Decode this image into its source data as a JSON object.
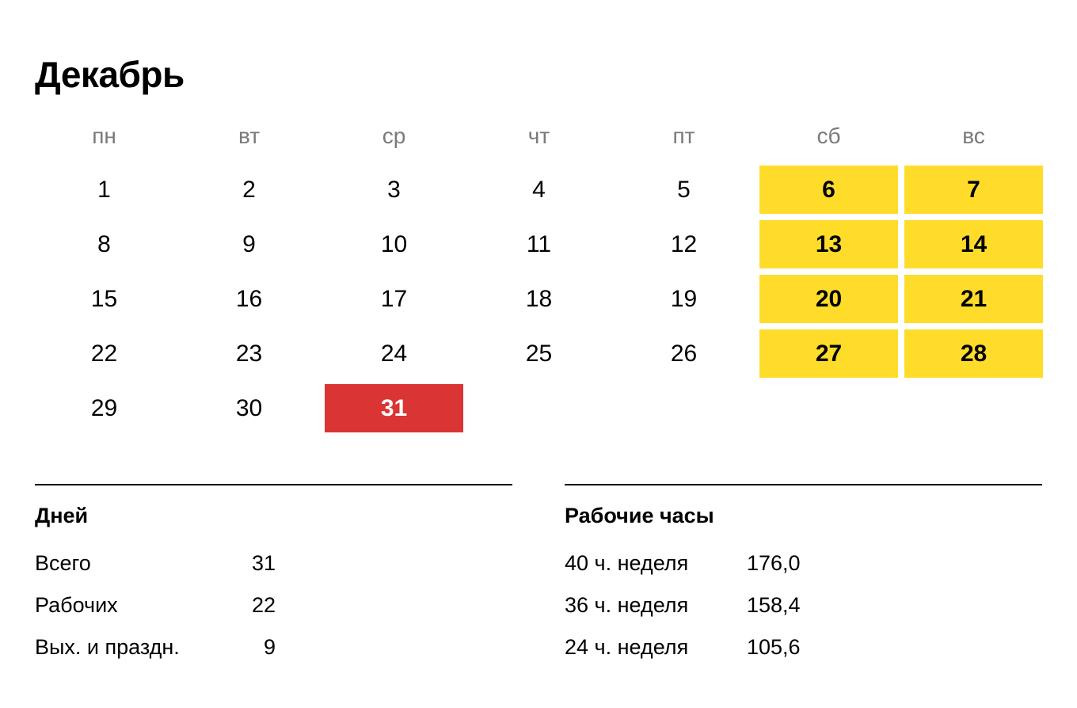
{
  "month": "Декабрь",
  "weekdays": [
    "пн",
    "вт",
    "ср",
    "чт",
    "пт",
    "сб",
    "вс"
  ],
  "weeks": [
    [
      {
        "d": "1",
        "t": "work"
      },
      {
        "d": "2",
        "t": "work"
      },
      {
        "d": "3",
        "t": "work"
      },
      {
        "d": "4",
        "t": "work"
      },
      {
        "d": "5",
        "t": "work"
      },
      {
        "d": "6",
        "t": "weekend"
      },
      {
        "d": "7",
        "t": "weekend"
      }
    ],
    [
      {
        "d": "8",
        "t": "work"
      },
      {
        "d": "9",
        "t": "work"
      },
      {
        "d": "10",
        "t": "work"
      },
      {
        "d": "11",
        "t": "work"
      },
      {
        "d": "12",
        "t": "work"
      },
      {
        "d": "13",
        "t": "weekend"
      },
      {
        "d": "14",
        "t": "weekend"
      }
    ],
    [
      {
        "d": "15",
        "t": "work"
      },
      {
        "d": "16",
        "t": "work"
      },
      {
        "d": "17",
        "t": "work"
      },
      {
        "d": "18",
        "t": "work"
      },
      {
        "d": "19",
        "t": "work"
      },
      {
        "d": "20",
        "t": "weekend"
      },
      {
        "d": "21",
        "t": "weekend"
      }
    ],
    [
      {
        "d": "22",
        "t": "work"
      },
      {
        "d": "23",
        "t": "work"
      },
      {
        "d": "24",
        "t": "work"
      },
      {
        "d": "25",
        "t": "work"
      },
      {
        "d": "26",
        "t": "work"
      },
      {
        "d": "27",
        "t": "weekend"
      },
      {
        "d": "28",
        "t": "weekend"
      }
    ],
    [
      {
        "d": "29",
        "t": "work"
      },
      {
        "d": "30",
        "t": "work"
      },
      {
        "d": "31",
        "t": "holiday"
      }
    ]
  ],
  "colors": {
    "weekend": "#ffdc2a",
    "holiday": "#da3434",
    "weekday_label": "#7a7a7a"
  },
  "days_summary": {
    "title": "Дней",
    "rows": [
      {
        "label": "Всего",
        "value": "31"
      },
      {
        "label": "Рабочих",
        "value": "22"
      },
      {
        "label": "Вых. и праздн.",
        "value": "9"
      }
    ]
  },
  "hours_summary": {
    "title": "Рабочие часы",
    "rows": [
      {
        "label": "40 ч. неделя",
        "value": "176,0"
      },
      {
        "label": "36 ч. неделя",
        "value": "158,4"
      },
      {
        "label": "24 ч. неделя",
        "value": "105,6"
      }
    ]
  }
}
